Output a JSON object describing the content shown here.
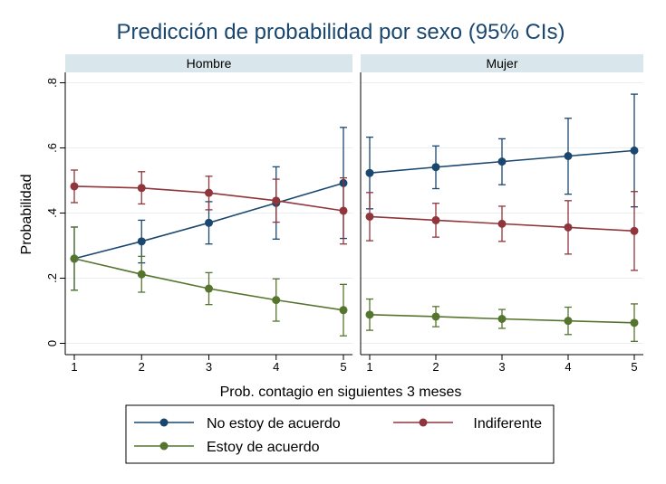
{
  "chart_data": {
    "type": "line",
    "title": "Predicción de probabilidad por sexo (95% CIs)",
    "xlabel": "Prob. contagio en siguientes 3 meses",
    "ylabel": "Probabilidad",
    "x": [
      1,
      2,
      3,
      4,
      5
    ],
    "xticks": [
      "1",
      "2",
      "3",
      "4",
      "5"
    ],
    "ylim": [
      0,
      0.8
    ],
    "yticks": [
      {
        "value": 0,
        "label": "0"
      },
      {
        "value": 0.2,
        "label": ".2"
      },
      {
        "value": 0.4,
        "label": ".4"
      },
      {
        "value": 0.6,
        "label": ".6"
      },
      {
        "value": 0.8,
        "label": ".8"
      }
    ],
    "grid": true,
    "error_bars": "95% CI",
    "legend_position": "bottom",
    "panels": [
      {
        "name": "Hombre",
        "series": [
          {
            "name": "No estoy de acuerdo",
            "color": "#1a476f",
            "values": [
              0.26,
              0.313,
              0.37,
              0.431,
              0.492
            ],
            "lower": [
              0.163,
              0.247,
              0.305,
              0.32,
              0.322
            ],
            "upper": [
              0.357,
              0.378,
              0.435,
              0.542,
              0.663
            ]
          },
          {
            "name": "Indiferente",
            "color": "#90353b",
            "values": [
              0.482,
              0.477,
              0.462,
              0.438,
              0.407
            ],
            "lower": [
              0.432,
              0.428,
              0.41,
              0.372,
              0.305
            ],
            "upper": [
              0.532,
              0.527,
              0.513,
              0.504,
              0.508
            ]
          },
          {
            "name": "Estoy de acuerdo",
            "color": "#55752f",
            "values": [
              0.26,
              0.212,
              0.168,
              0.133,
              0.102
            ],
            "lower": [
              0.163,
              0.157,
              0.119,
              0.068,
              0.023
            ],
            "upper": [
              0.357,
              0.267,
              0.217,
              0.198,
              0.181
            ]
          }
        ]
      },
      {
        "name": "Mujer",
        "series": [
          {
            "name": "No estoy de acuerdo",
            "color": "#1a476f",
            "values": [
              0.523,
              0.541,
              0.558,
              0.575,
              0.592
            ],
            "lower": [
              0.413,
              0.475,
              0.487,
              0.458,
              0.419
            ],
            "upper": [
              0.633,
              0.606,
              0.628,
              0.691,
              0.765
            ]
          },
          {
            "name": "Indiferente",
            "color": "#90353b",
            "values": [
              0.389,
              0.378,
              0.367,
              0.356,
              0.345
            ],
            "lower": [
              0.315,
              0.326,
              0.313,
              0.274,
              0.224
            ],
            "upper": [
              0.463,
              0.43,
              0.421,
              0.438,
              0.466
            ]
          },
          {
            "name": "Estoy de acuerdo",
            "color": "#55752f",
            "values": [
              0.088,
              0.082,
              0.075,
              0.069,
              0.063
            ],
            "lower": [
              0.04,
              0.051,
              0.046,
              0.027,
              0.006
            ],
            "upper": [
              0.136,
              0.113,
              0.104,
              0.111,
              0.121
            ]
          }
        ]
      }
    ],
    "legend": [
      {
        "name": "No estoy de acuerdo",
        "color": "#1a476f"
      },
      {
        "name": "Indiferente",
        "color": "#90353b"
      },
      {
        "name": "Estoy de acuerdo",
        "color": "#55752f"
      }
    ]
  },
  "colors": {
    "title": "#1a476f",
    "strip": "#d9e6ec",
    "grid": "#e8eef1",
    "axis": "#000000"
  }
}
